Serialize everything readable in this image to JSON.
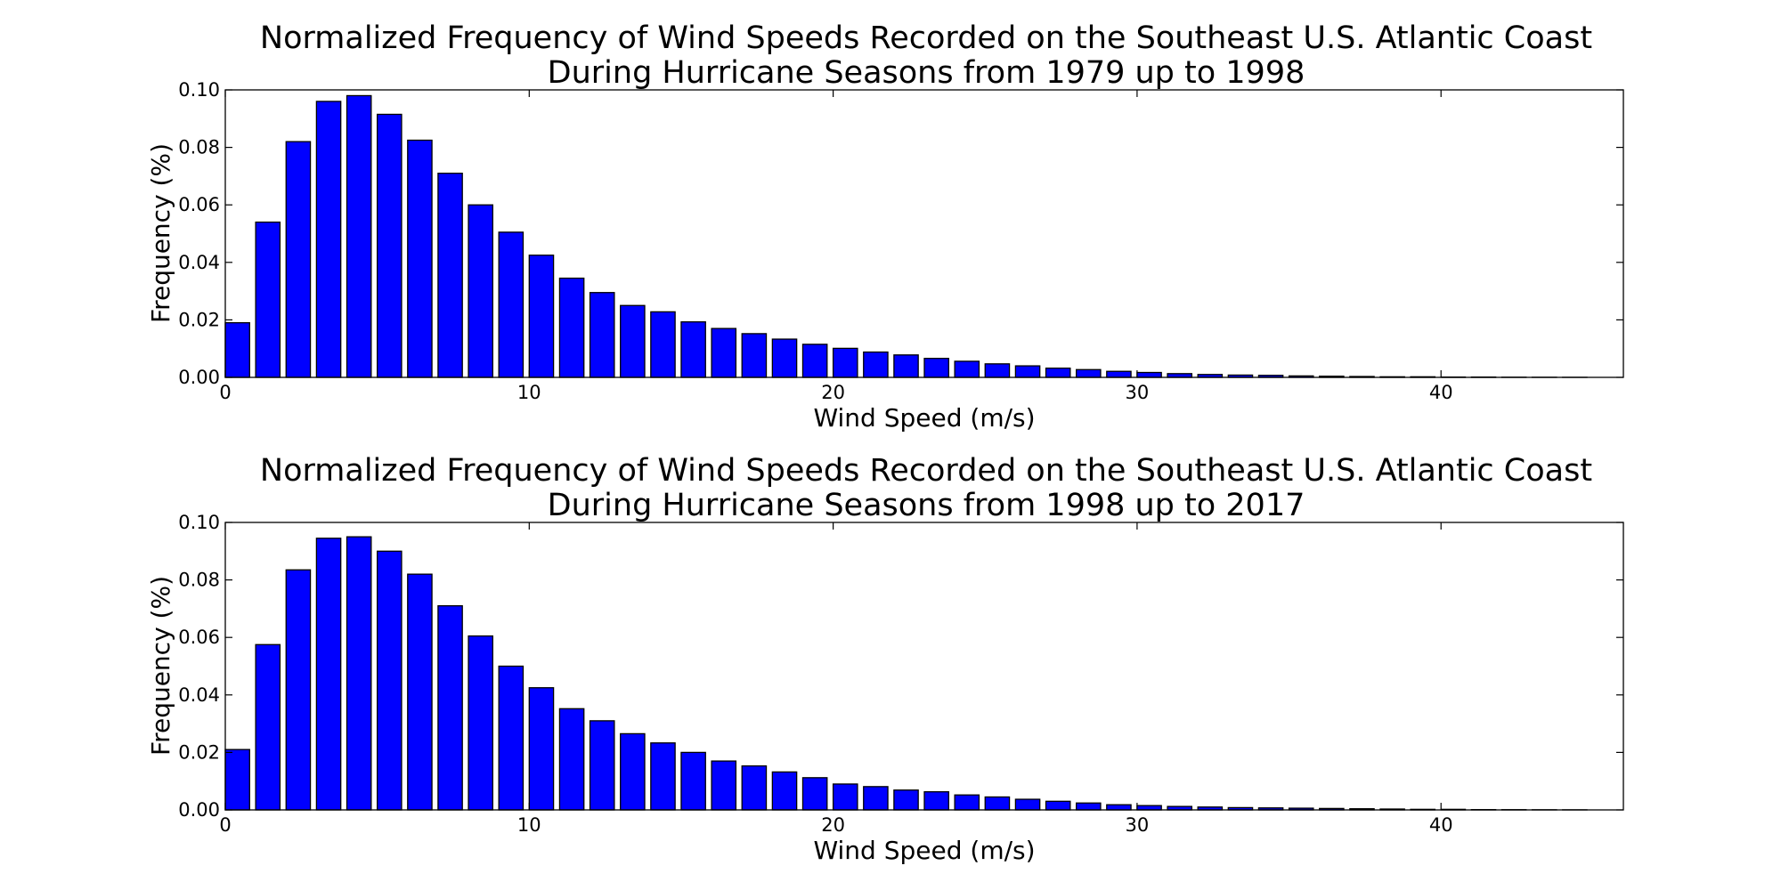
{
  "chart_data": [
    {
      "type": "bar",
      "title": "Normalized Frequency of Wind Speeds Recorded on the Southeast U.S. Atlantic Coast",
      "subtitle": "During Hurricane Seasons from 1979 up to 1998",
      "xlabel": "Wind Speed (m/s)",
      "ylabel": "Frequency (%)",
      "xlim": [
        0,
        46
      ],
      "ylim": [
        0,
        0.1
      ],
      "xticks": [
        "0",
        "10",
        "20",
        "30",
        "40"
      ],
      "yticks": [
        "0.00",
        "0.02",
        "0.04",
        "0.06",
        "0.08",
        "0.10"
      ],
      "grid": false,
      "bar_color": "#0000ff",
      "x": [
        0,
        1,
        2,
        3,
        4,
        5,
        6,
        7,
        8,
        9,
        10,
        11,
        12,
        13,
        14,
        15,
        16,
        17,
        18,
        19,
        20,
        21,
        22,
        23,
        24,
        25,
        26,
        27,
        28,
        29,
        30,
        31,
        32,
        33,
        34,
        35,
        36,
        37,
        38,
        39,
        40,
        41,
        42,
        43,
        44
      ],
      "values": [
        0.019,
        0.054,
        0.082,
        0.096,
        0.098,
        0.0915,
        0.0825,
        0.071,
        0.06,
        0.0505,
        0.0425,
        0.0345,
        0.0295,
        0.025,
        0.0228,
        0.0193,
        0.017,
        0.0152,
        0.0133,
        0.0115,
        0.0101,
        0.0088,
        0.0078,
        0.0066,
        0.0056,
        0.0047,
        0.004,
        0.0032,
        0.0027,
        0.0021,
        0.0017,
        0.0013,
        0.001,
        0.0008,
        0.0007,
        0.0005,
        0.0004,
        0.0003,
        0.0002,
        0.0002,
        0.0001,
        0.0001,
        5e-05,
        3e-05,
        2e-05
      ]
    },
    {
      "type": "bar",
      "title": "Normalized Frequency of Wind Speeds Recorded on the Southeast U.S. Atlantic Coast",
      "subtitle": "During Hurricane Seasons from 1998 up to 2017",
      "xlabel": "Wind Speed (m/s)",
      "ylabel": "Frequency (%)",
      "xlim": [
        0,
        46
      ],
      "ylim": [
        0,
        0.1
      ],
      "xticks": [
        "0",
        "10",
        "20",
        "30",
        "40"
      ],
      "yticks": [
        "0.00",
        "0.02",
        "0.04",
        "0.06",
        "0.08",
        "0.10"
      ],
      "grid": false,
      "bar_color": "#0000ff",
      "x": [
        0,
        1,
        2,
        3,
        4,
        5,
        6,
        7,
        8,
        9,
        10,
        11,
        12,
        13,
        14,
        15,
        16,
        17,
        18,
        19,
        20,
        21,
        22,
        23,
        24,
        25,
        26,
        27,
        28,
        29,
        30,
        31,
        32,
        33,
        34,
        35,
        36,
        37,
        38,
        39,
        40,
        41,
        42,
        43,
        44
      ],
      "values": [
        0.021,
        0.0575,
        0.0835,
        0.0945,
        0.095,
        0.09,
        0.082,
        0.071,
        0.0605,
        0.05,
        0.0425,
        0.0352,
        0.031,
        0.0265,
        0.0233,
        0.02,
        0.017,
        0.0153,
        0.0132,
        0.0112,
        0.009,
        0.0081,
        0.0069,
        0.0063,
        0.0052,
        0.0045,
        0.0037,
        0.003,
        0.0024,
        0.0018,
        0.0015,
        0.0012,
        0.001,
        0.0008,
        0.0007,
        0.0006,
        0.0005,
        0.0004,
        0.0003,
        0.0002,
        0.0002,
        0.0001,
        8e-05,
        5e-05,
        3e-05
      ]
    }
  ]
}
